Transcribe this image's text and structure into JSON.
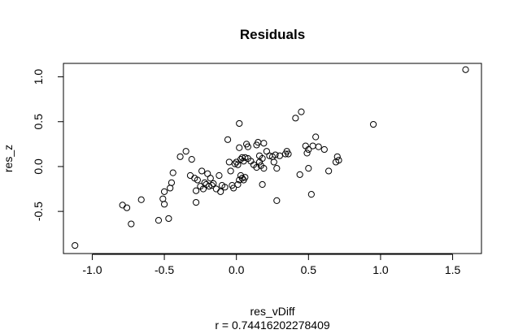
{
  "chart_data": {
    "type": "scatter",
    "title": "Residuals",
    "xlabel": "res_vDiff",
    "ylabel": "res_z",
    "sublabel": "r = 0.74416202278409",
    "xlim": [
      -1.2,
      1.7
    ],
    "ylim": [
      -0.97,
      1.15
    ],
    "xticks": [
      -1.0,
      -0.5,
      0.0,
      0.5,
      1.0,
      1.5
    ],
    "xtick_labels": [
      "-1.0",
      "-0.5",
      "0.0",
      "0.5",
      "1.0",
      "1.5"
    ],
    "yticks": [
      -0.5,
      0.0,
      0.5,
      1.0
    ],
    "ytick_labels": [
      "-0.5",
      "0.0",
      "0.5",
      "1.0"
    ],
    "grid": false,
    "points": [
      {
        "x": -1.12,
        "y": -0.88
      },
      {
        "x": -0.79,
        "y": -0.43
      },
      {
        "x": -0.76,
        "y": -0.46
      },
      {
        "x": -0.73,
        "y": -0.64
      },
      {
        "x": -0.66,
        "y": -0.37
      },
      {
        "x": -0.54,
        "y": -0.6
      },
      {
        "x": -0.51,
        "y": -0.36
      },
      {
        "x": -0.5,
        "y": -0.28
      },
      {
        "x": -0.5,
        "y": -0.42
      },
      {
        "x": -0.47,
        "y": -0.58
      },
      {
        "x": -0.46,
        "y": -0.24
      },
      {
        "x": -0.45,
        "y": -0.18
      },
      {
        "x": -0.44,
        "y": -0.07
      },
      {
        "x": -0.39,
        "y": 0.11
      },
      {
        "x": -0.35,
        "y": 0.17
      },
      {
        "x": -0.32,
        "y": -0.1
      },
      {
        "x": -0.31,
        "y": 0.08
      },
      {
        "x": -0.29,
        "y": -0.13
      },
      {
        "x": -0.28,
        "y": -0.4
      },
      {
        "x": -0.28,
        "y": -0.27
      },
      {
        "x": -0.27,
        "y": -0.15
      },
      {
        "x": -0.25,
        "y": -0.22
      },
      {
        "x": -0.24,
        "y": -0.05
      },
      {
        "x": -0.23,
        "y": -0.25
      },
      {
        "x": -0.22,
        "y": -0.18
      },
      {
        "x": -0.21,
        "y": -0.2
      },
      {
        "x": -0.2,
        "y": -0.08
      },
      {
        "x": -0.19,
        "y": -0.22
      },
      {
        "x": -0.18,
        "y": -0.13
      },
      {
        "x": -0.17,
        "y": -0.21
      },
      {
        "x": -0.16,
        "y": -0.19
      },
      {
        "x": -0.14,
        "y": -0.25
      },
      {
        "x": -0.12,
        "y": -0.1
      },
      {
        "x": -0.11,
        "y": -0.28
      },
      {
        "x": -0.1,
        "y": -0.21
      },
      {
        "x": -0.08,
        "y": -0.23
      },
      {
        "x": -0.06,
        "y": 0.3
      },
      {
        "x": -0.05,
        "y": 0.05
      },
      {
        "x": -0.04,
        "y": -0.05
      },
      {
        "x": -0.03,
        "y": -0.21
      },
      {
        "x": -0.02,
        "y": -0.24
      },
      {
        "x": -0.01,
        "y": 0.03
      },
      {
        "x": 0.0,
        "y": 0.05
      },
      {
        "x": 0.01,
        "y": 0.02
      },
      {
        "x": 0.01,
        "y": -0.2
      },
      {
        "x": 0.02,
        "y": -0.15
      },
      {
        "x": 0.02,
        "y": 0.48
      },
      {
        "x": 0.02,
        "y": 0.21
      },
      {
        "x": 0.03,
        "y": -0.1
      },
      {
        "x": 0.03,
        "y": 0.08
      },
      {
        "x": 0.04,
        "y": -0.13
      },
      {
        "x": 0.04,
        "y": 0.1
      },
      {
        "x": 0.05,
        "y": 0.06
      },
      {
        "x": 0.05,
        "y": -0.15
      },
      {
        "x": 0.06,
        "y": -0.12
      },
      {
        "x": 0.06,
        "y": 0.1
      },
      {
        "x": 0.07,
        "y": 0.25
      },
      {
        "x": 0.08,
        "y": 0.22
      },
      {
        "x": 0.08,
        "y": 0.09
      },
      {
        "x": 0.1,
        "y": 0.06
      },
      {
        "x": 0.12,
        "y": 0.02
      },
      {
        "x": 0.14,
        "y": 0.24
      },
      {
        "x": 0.14,
        "y": -0.01
      },
      {
        "x": 0.15,
        "y": 0.27
      },
      {
        "x": 0.16,
        "y": 0.05
      },
      {
        "x": 0.16,
        "y": 0.12
      },
      {
        "x": 0.17,
        "y": 0.01
      },
      {
        "x": 0.18,
        "y": 0.09
      },
      {
        "x": 0.18,
        "y": -0.2
      },
      {
        "x": 0.19,
        "y": 0.26
      },
      {
        "x": 0.19,
        "y": -0.02
      },
      {
        "x": 0.21,
        "y": 0.17
      },
      {
        "x": 0.23,
        "y": 0.12
      },
      {
        "x": 0.25,
        "y": 0.11
      },
      {
        "x": 0.26,
        "y": 0.05
      },
      {
        "x": 0.27,
        "y": 0.13
      },
      {
        "x": 0.28,
        "y": -0.02
      },
      {
        "x": 0.28,
        "y": -0.38
      },
      {
        "x": 0.3,
        "y": 0.12
      },
      {
        "x": 0.34,
        "y": 0.14
      },
      {
        "x": 0.35,
        "y": 0.17
      },
      {
        "x": 0.36,
        "y": 0.14
      },
      {
        "x": 0.41,
        "y": 0.54
      },
      {
        "x": 0.44,
        "y": -0.09
      },
      {
        "x": 0.45,
        "y": 0.61
      },
      {
        "x": 0.48,
        "y": 0.23
      },
      {
        "x": 0.49,
        "y": 0.15
      },
      {
        "x": 0.5,
        "y": 0.19
      },
      {
        "x": 0.5,
        "y": -0.02
      },
      {
        "x": 0.52,
        "y": -0.31
      },
      {
        "x": 0.53,
        "y": 0.23
      },
      {
        "x": 0.55,
        "y": 0.33
      },
      {
        "x": 0.57,
        "y": 0.22
      },
      {
        "x": 0.61,
        "y": 0.19
      },
      {
        "x": 0.64,
        "y": -0.05
      },
      {
        "x": 0.69,
        "y": 0.05
      },
      {
        "x": 0.7,
        "y": 0.11
      },
      {
        "x": 0.71,
        "y": 0.07
      },
      {
        "x": 0.95,
        "y": 0.47
      },
      {
        "x": 1.59,
        "y": 1.08
      }
    ]
  }
}
